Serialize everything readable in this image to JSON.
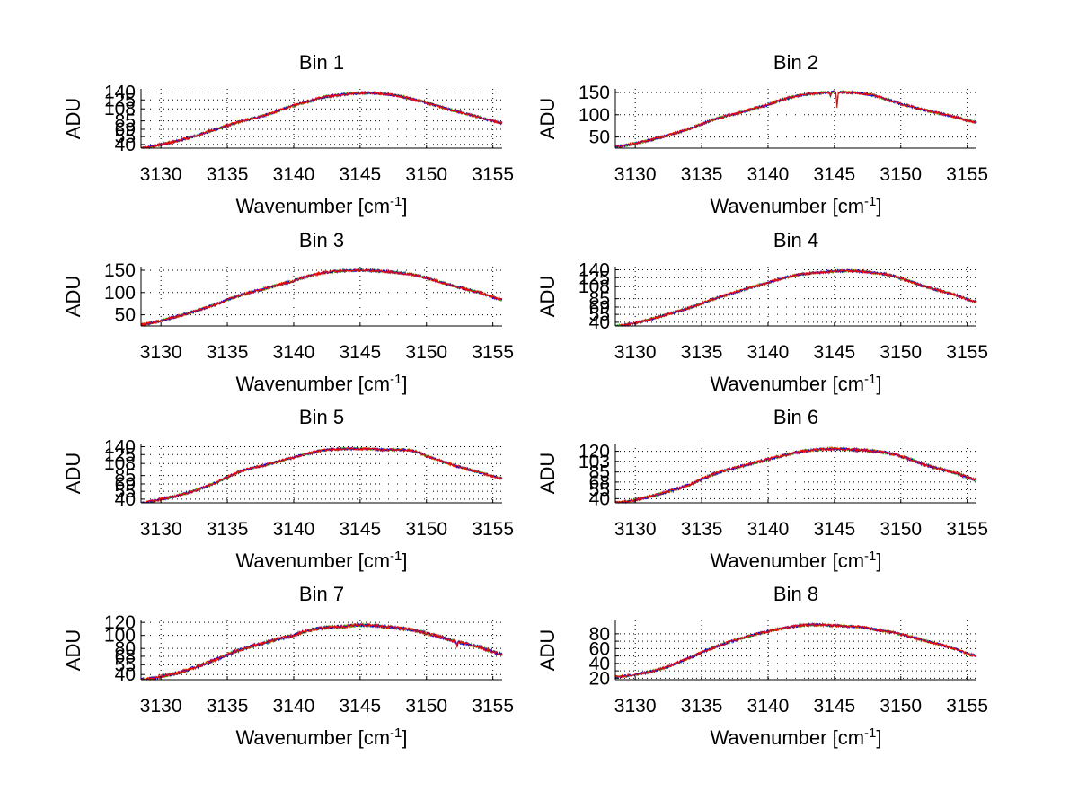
{
  "figure": {
    "background": "#ffffff",
    "series_colors": [
      "#ff8000",
      "#00c000",
      "#0000ff",
      "#ff0000"
    ]
  },
  "chart_data": [
    {
      "type": "line",
      "title": "Bin 1",
      "xlabel": "Wavenumber [cm",
      "xlabel_sup": "-1",
      "xlabel_suffix": "]",
      "ylabel": "ADU",
      "xlim": [
        3128.5,
        3155.7
      ],
      "ylim": [
        33,
        146
      ],
      "xticks": [
        3130,
        3135,
        3140,
        3145,
        3150,
        3155
      ],
      "yticks": [
        40,
        55,
        69,
        85,
        108,
        125,
        140
      ],
      "ytick_labels": [
        "40",
        "55",
        "69",
        "85",
        "108",
        "125",
        "140"
      ],
      "grid": true,
      "x": [
        3128.5,
        3130,
        3132,
        3134,
        3136,
        3138,
        3140,
        3141,
        3142,
        3143,
        3144,
        3145,
        3146,
        3147,
        3148,
        3149,
        3150,
        3152,
        3154,
        3155.7
      ],
      "y": [
        33,
        40,
        52,
        68,
        84,
        97,
        114,
        121,
        129,
        133,
        136,
        138,
        138,
        136,
        132,
        126,
        119,
        105,
        92,
        81
      ],
      "noise_amplitude": 2.5,
      "dips": []
    },
    {
      "type": "line",
      "title": "Bin 2",
      "xlabel": "Wavenumber [cm",
      "xlabel_sup": "-1",
      "xlabel_suffix": "]",
      "ylabel": "ADU",
      "xlim": [
        3128.5,
        3155.7
      ],
      "ylim": [
        25,
        158
      ],
      "xticks": [
        3130,
        3135,
        3140,
        3145,
        3150,
        3155
      ],
      "yticks": [
        50,
        100,
        150
      ],
      "ytick_labels": [
        "50",
        "100",
        "150"
      ],
      "grid": true,
      "x": [
        3128.5,
        3130,
        3132,
        3134,
        3136,
        3138,
        3140,
        3141,
        3142,
        3143,
        3144,
        3145,
        3146,
        3147,
        3148,
        3149,
        3150,
        3152,
        3154,
        3155.7
      ],
      "y": [
        28,
        36,
        50,
        68,
        90,
        106,
        122,
        133,
        141,
        146,
        149,
        151,
        150,
        148,
        143,
        134,
        124,
        109,
        96,
        83
      ],
      "noise_amplitude": 3,
      "dips": [
        {
          "x": 3145.2,
          "depth": 33
        },
        {
          "x": 3144.7,
          "depth": 10
        }
      ]
    },
    {
      "type": "line",
      "title": "Bin 3",
      "xlabel": "Wavenumber [cm",
      "xlabel_sup": "-1",
      "xlabel_suffix": "]",
      "ylabel": "ADU",
      "xlim": [
        3128.5,
        3155.7
      ],
      "ylim": [
        25,
        158
      ],
      "xticks": [
        3130,
        3135,
        3140,
        3145,
        3150,
        3155
      ],
      "yticks": [
        50,
        100,
        150
      ],
      "ytick_labels": [
        "50",
        "100",
        "150"
      ],
      "grid": true,
      "x": [
        3128.5,
        3130,
        3132,
        3134,
        3136,
        3138,
        3140,
        3141,
        3142,
        3143,
        3144,
        3145,
        3146,
        3147,
        3148,
        3149,
        3150,
        3152,
        3154,
        3155.7
      ],
      "y": [
        28,
        37,
        53,
        72,
        94,
        110,
        126,
        136,
        143,
        147,
        149,
        150,
        149,
        147,
        144,
        140,
        132,
        115,
        100,
        84
      ],
      "noise_amplitude": 3,
      "dips": []
    },
    {
      "type": "line",
      "title": "Bin 4",
      "xlabel": "Wavenumber [cm",
      "xlabel_sup": "-1",
      "xlabel_suffix": "]",
      "ylabel": "ADU",
      "xlim": [
        3128.5,
        3155.7
      ],
      "ylim": [
        33,
        146
      ],
      "xticks": [
        3130,
        3135,
        3140,
        3145,
        3150,
        3155
      ],
      "yticks": [
        40,
        55,
        69,
        85,
        108,
        125,
        140
      ],
      "ytick_labels": [
        "40",
        "55",
        "69",
        "85",
        "108",
        "125",
        "140"
      ],
      "grid": true,
      "x": [
        3128.5,
        3130,
        3132,
        3134,
        3136,
        3138,
        3140,
        3141,
        3142,
        3143,
        3144,
        3145,
        3146,
        3147,
        3148,
        3149,
        3150,
        3152,
        3154,
        3155.7
      ],
      "y": [
        33,
        39,
        52,
        67,
        85,
        101,
        115,
        123,
        129,
        133,
        135,
        137,
        138,
        137,
        134,
        131,
        123,
        107,
        93,
        79
      ],
      "noise_amplitude": 2.5,
      "dips": []
    },
    {
      "type": "line",
      "title": "Bin 5",
      "xlabel": "Wavenumber [cm",
      "xlabel_sup": "-1",
      "xlabel_suffix": "]",
      "ylabel": "ADU",
      "xlim": [
        3128.5,
        3155.7
      ],
      "ylim": [
        33,
        146
      ],
      "xticks": [
        3130,
        3135,
        3140,
        3145,
        3150,
        3155
      ],
      "yticks": [
        40,
        55,
        69,
        85,
        108,
        125,
        140
      ],
      "ytick_labels": [
        "40",
        "55",
        "69",
        "85",
        "108",
        "125",
        "140"
      ],
      "grid": true,
      "x": [
        3128.5,
        3130,
        3132,
        3134,
        3136,
        3138,
        3140,
        3141,
        3142,
        3143,
        3144,
        3145,
        3146,
        3147,
        3148,
        3149,
        3150,
        3152,
        3154,
        3155.7
      ],
      "y": [
        33,
        40,
        52,
        70,
        93,
        106,
        119,
        126,
        132,
        135,
        136,
        136,
        135,
        134,
        134,
        132,
        122,
        105,
        91,
        80
      ],
      "noise_amplitude": 2.5,
      "dips": []
    },
    {
      "type": "line",
      "title": "Bin 6",
      "xlabel": "Wavenumber [cm",
      "xlabel_sup": "-1",
      "xlabel_suffix": "]",
      "ylabel": "ADU",
      "xlim": [
        3128.5,
        3155.7
      ],
      "ylim": [
        33,
        133
      ],
      "xticks": [
        3130,
        3135,
        3140,
        3145,
        3150,
        3155
      ],
      "yticks": [
        40,
        55,
        68,
        85,
        103,
        120
      ],
      "ytick_labels": [
        "40",
        "55",
        "68",
        "85",
        "103",
        "120"
      ],
      "grid": true,
      "x": [
        3128.5,
        3130,
        3132,
        3134,
        3136,
        3138,
        3140,
        3141,
        3142,
        3143,
        3144,
        3145,
        3146,
        3147,
        3148,
        3149,
        3150,
        3152,
        3154,
        3155.7
      ],
      "y": [
        33,
        38,
        49,
        63,
        82,
        95,
        106,
        112,
        117,
        121,
        123,
        124,
        123,
        122,
        120,
        117,
        111,
        96,
        84,
        72
      ],
      "noise_amplitude": 2.5,
      "dips": []
    },
    {
      "type": "line",
      "title": "Bin 7",
      "xlabel": "Wavenumber [cm",
      "xlabel_sup": "-1",
      "xlabel_suffix": "]",
      "ylabel": "ADU",
      "xlim": [
        3128.5,
        3155.7
      ],
      "ylim": [
        32,
        123
      ],
      "xticks": [
        3130,
        3135,
        3140,
        3145,
        3150,
        3155
      ],
      "yticks": [
        40,
        55,
        68,
        80,
        100,
        120
      ],
      "ytick_labels": [
        "40",
        "55",
        "68",
        "80",
        "100",
        "120"
      ],
      "grid": true,
      "x": [
        3128.5,
        3130,
        3132,
        3134,
        3136,
        3138,
        3140,
        3141,
        3142,
        3143,
        3144,
        3145,
        3146,
        3147,
        3148,
        3149,
        3150,
        3152,
        3154,
        3155.7
      ],
      "y": [
        32,
        37,
        47,
        62,
        78,
        90,
        100,
        107,
        111,
        113,
        114,
        116,
        115,
        113,
        111,
        108,
        103,
        92,
        82,
        71
      ],
      "noise_amplitude": 2.5,
      "dips": [
        {
          "x": 3152.3,
          "depth": 7
        }
      ]
    },
    {
      "type": "line",
      "title": "Bin 8",
      "xlabel": "Wavenumber [cm",
      "xlabel_sup": "-1",
      "xlabel_suffix": "]",
      "ylabel": "ADU",
      "xlim": [
        3128.5,
        3155.7
      ],
      "ylim": [
        18,
        98
      ],
      "xticks": [
        3130,
        3135,
        3140,
        3145,
        3150,
        3155
      ],
      "yticks": [
        20,
        30,
        40,
        50,
        60,
        70,
        80
      ],
      "ytick_labels": [
        "20",
        "",
        "40",
        "",
        "60",
        "",
        "80"
      ],
      "grid": true,
      "x": [
        3128.5,
        3130,
        3132,
        3134,
        3136,
        3138,
        3140,
        3141,
        3142,
        3143,
        3144,
        3145,
        3146,
        3147,
        3148,
        3149,
        3150,
        3152,
        3154,
        3155.7
      ],
      "y": [
        22,
        25,
        33,
        47,
        62,
        74,
        83,
        87,
        90,
        92,
        92,
        91,
        90,
        89,
        86,
        83,
        79,
        70,
        60,
        50
      ],
      "noise_amplitude": 1.8,
      "dips": []
    }
  ]
}
